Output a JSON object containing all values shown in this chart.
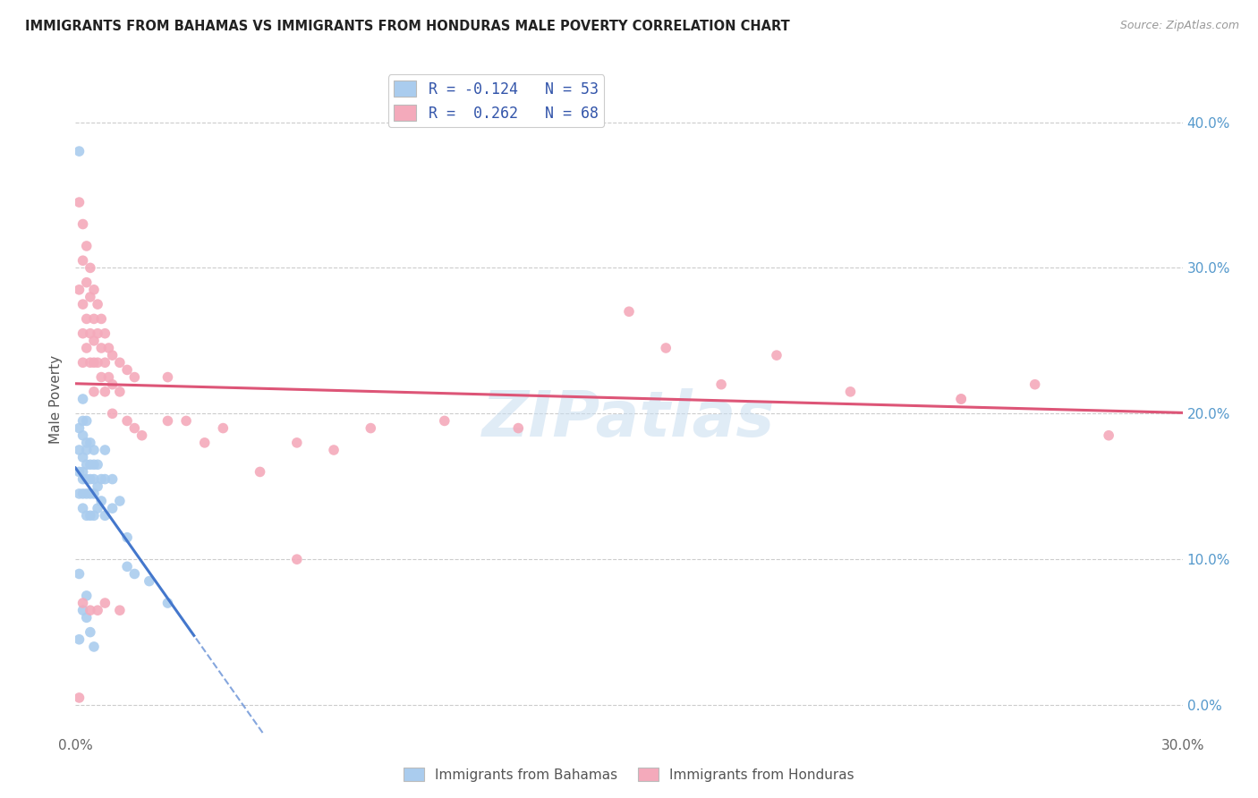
{
  "title": "IMMIGRANTS FROM BAHAMAS VS IMMIGRANTS FROM HONDURAS MALE POVERTY CORRELATION CHART",
  "source": "Source: ZipAtlas.com",
  "ylabel": "Male Poverty",
  "right_yticks": [
    "0.0%",
    "10.0%",
    "20.0%",
    "30.0%",
    "40.0%"
  ],
  "right_ytick_vals": [
    0.0,
    0.1,
    0.2,
    0.3,
    0.4
  ],
  "xlim": [
    0.0,
    0.3
  ],
  "ylim": [
    -0.02,
    0.44
  ],
  "legend_r_blue": "-0.124",
  "legend_n_blue": "53",
  "legend_r_pink": "0.262",
  "legend_n_pink": "68",
  "blue_color": "#aaccee",
  "pink_color": "#f4aabb",
  "blue_line_color": "#4477cc",
  "pink_line_color": "#dd5577",
  "watermark": "ZIPatlas",
  "bahamas_x": [
    0.001,
    0.001,
    0.001,
    0.001,
    0.001,
    0.002,
    0.002,
    0.002,
    0.002,
    0.002,
    0.002,
    0.002,
    0.002,
    0.003,
    0.003,
    0.003,
    0.003,
    0.003,
    0.003,
    0.003,
    0.004,
    0.004,
    0.004,
    0.004,
    0.004,
    0.005,
    0.005,
    0.005,
    0.005,
    0.005,
    0.006,
    0.006,
    0.006,
    0.007,
    0.007,
    0.008,
    0.008,
    0.008,
    0.01,
    0.01,
    0.012,
    0.014,
    0.014,
    0.016,
    0.02,
    0.025,
    0.001,
    0.002,
    0.001,
    0.003,
    0.004,
    0.005,
    0.003
  ],
  "bahamas_y": [
    0.38,
    0.19,
    0.175,
    0.16,
    0.145,
    0.21,
    0.195,
    0.185,
    0.17,
    0.16,
    0.155,
    0.145,
    0.135,
    0.195,
    0.18,
    0.175,
    0.165,
    0.155,
    0.145,
    0.13,
    0.18,
    0.165,
    0.155,
    0.145,
    0.13,
    0.175,
    0.165,
    0.155,
    0.145,
    0.13,
    0.165,
    0.15,
    0.135,
    0.155,
    0.14,
    0.175,
    0.155,
    0.13,
    0.155,
    0.135,
    0.14,
    0.115,
    0.095,
    0.09,
    0.085,
    0.07,
    0.09,
    0.065,
    0.045,
    0.075,
    0.05,
    0.04,
    0.06
  ],
  "honduras_x": [
    0.001,
    0.001,
    0.001,
    0.002,
    0.002,
    0.002,
    0.002,
    0.002,
    0.003,
    0.003,
    0.003,
    0.003,
    0.004,
    0.004,
    0.004,
    0.004,
    0.005,
    0.005,
    0.005,
    0.005,
    0.005,
    0.006,
    0.006,
    0.006,
    0.007,
    0.007,
    0.007,
    0.008,
    0.008,
    0.008,
    0.009,
    0.009,
    0.01,
    0.01,
    0.01,
    0.012,
    0.012,
    0.014,
    0.014,
    0.016,
    0.016,
    0.018,
    0.025,
    0.025,
    0.03,
    0.035,
    0.04,
    0.05,
    0.06,
    0.06,
    0.07,
    0.08,
    0.1,
    0.12,
    0.15,
    0.16,
    0.175,
    0.19,
    0.21,
    0.24,
    0.24,
    0.26,
    0.28,
    0.002,
    0.004,
    0.006,
    0.008,
    0.012
  ],
  "honduras_y": [
    0.345,
    0.285,
    0.005,
    0.33,
    0.305,
    0.275,
    0.255,
    0.235,
    0.315,
    0.29,
    0.265,
    0.245,
    0.3,
    0.28,
    0.255,
    0.235,
    0.285,
    0.265,
    0.25,
    0.235,
    0.215,
    0.275,
    0.255,
    0.235,
    0.265,
    0.245,
    0.225,
    0.255,
    0.235,
    0.215,
    0.245,
    0.225,
    0.24,
    0.22,
    0.2,
    0.235,
    0.215,
    0.23,
    0.195,
    0.225,
    0.19,
    0.185,
    0.225,
    0.195,
    0.195,
    0.18,
    0.19,
    0.16,
    0.18,
    0.1,
    0.175,
    0.19,
    0.195,
    0.19,
    0.27,
    0.245,
    0.22,
    0.24,
    0.215,
    0.21,
    0.21,
    0.22,
    0.185,
    0.07,
    0.065,
    0.065,
    0.07,
    0.065
  ]
}
